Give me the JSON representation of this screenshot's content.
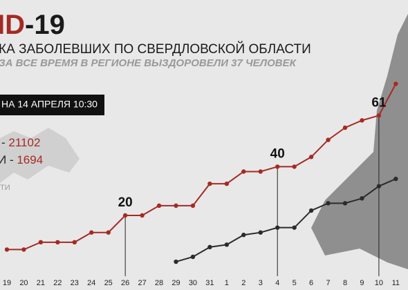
{
  "header": {
    "title_red": "ID",
    "title_black": "-19",
    "subtitle": "КА ЗАБОЛЕВШИХ ПО СВЕРДЛОВСКОЙ ОБЛАСТИ",
    "subtitle2": "ЗА ВСЕ ВРЕМЯ В РЕГИОНЕ ВЫЗДОРОВЕЛИ 37 ЧЕЛОВЕК",
    "date_box": "НА 14 АПРЕЛЯ 10:30"
  },
  "stats": [
    {
      "label": "-",
      "value": "21102"
    },
    {
      "label": "И -",
      "value": "1694"
    },
    {
      "label": "ТИ"
    }
  ],
  "chart_data": {
    "type": "line",
    "categories": [
      "19",
      "20",
      "21",
      "22",
      "23",
      "24",
      "25",
      "26",
      "27",
      "28",
      "29",
      "30",
      "31",
      "1",
      "2",
      "3",
      "4",
      "5",
      "6",
      "7",
      "8",
      "9",
      "10",
      "11"
    ],
    "series": [
      {
        "color": "#a52a24",
        "values": [
          6,
          6,
          9,
          9,
          9,
          13,
          13,
          20,
          20,
          24,
          24,
          24,
          33,
          33,
          38,
          38,
          40,
          40,
          44,
          51,
          56,
          59,
          61,
          74
        ]
      },
      {
        "color": "#2b2b2b",
        "values": [
          null,
          null,
          null,
          null,
          null,
          null,
          null,
          null,
          null,
          null,
          1,
          3,
          7,
          8,
          12,
          13,
          15,
          15,
          22,
          25,
          25,
          27,
          32,
          35
        ]
      }
    ],
    "labeled_indices": [
      7,
      16,
      22
    ],
    "ylim": [
      -10.6,
      108.4
    ]
  }
}
